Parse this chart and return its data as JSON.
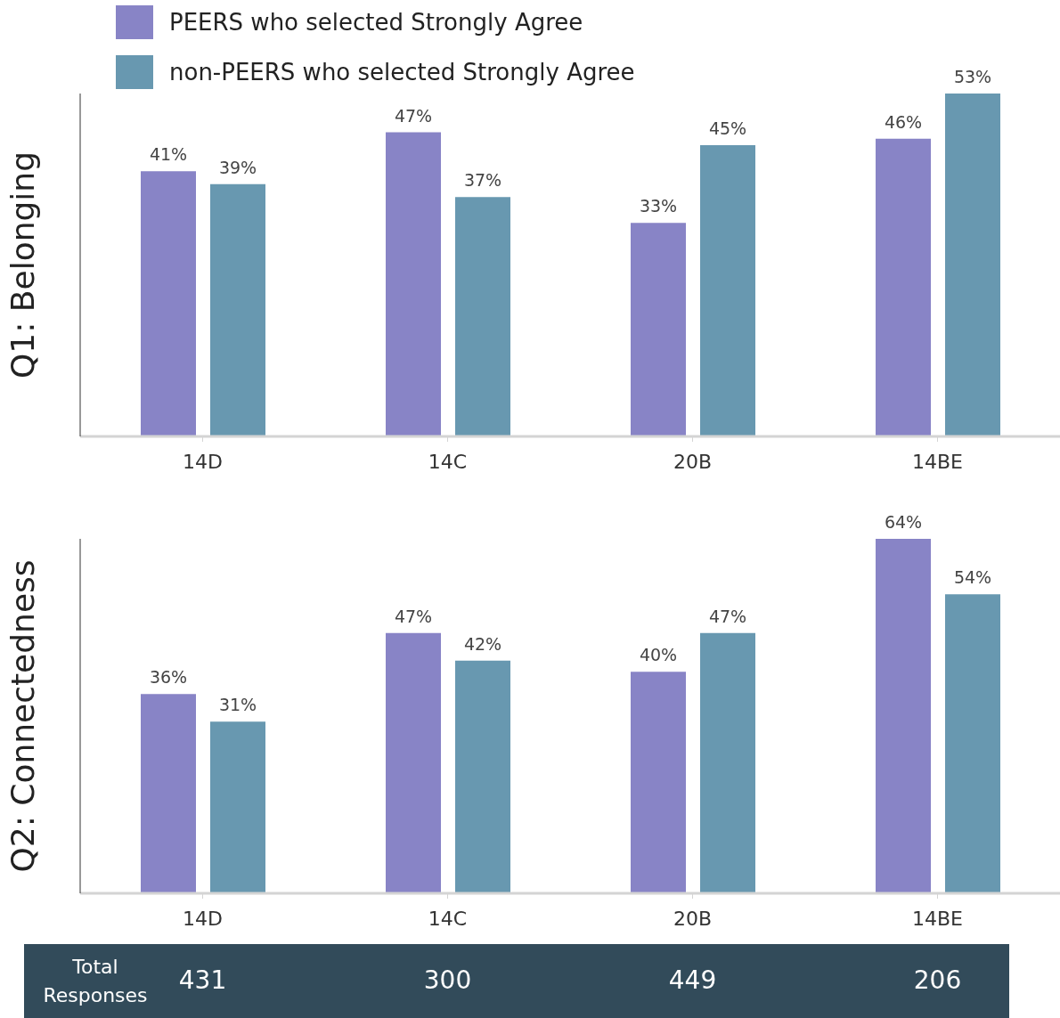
{
  "chart_data": [
    {
      "type": "bar",
      "ylabel": "Q1: Belonging",
      "categories": [
        "14D",
        "14C",
        "20B",
        "14BE"
      ],
      "legend": "top left",
      "tick_labels": "x",
      "grid": false,
      "series": [
        {
          "name": "PEERS who selected Strongly Agree",
          "color": "#8884c6",
          "values": [
            41,
            47,
            33,
            46
          ],
          "value_labels": [
            "41%",
            "47%",
            "33%",
            "46%"
          ]
        },
        {
          "name": "non-PEERS who selected Strongly Agree",
          "color": "#6898b0",
          "values": [
            39,
            37,
            45,
            53
          ],
          "value_labels": [
            "39%",
            "37%",
            "45%",
            "53%"
          ]
        }
      ]
    },
    {
      "type": "bar",
      "ylabel": "Q2: Connectedness",
      "categories": [
        "14D",
        "14C",
        "20B",
        "14BE"
      ],
      "legend": false,
      "tick_labels": "x",
      "grid": false,
      "series": [
        {
          "color": "#8884c6",
          "values": [
            36,
            47,
            40,
            64
          ],
          "value_labels": [
            "36%",
            "47%",
            "40%",
            "64%"
          ]
        },
        {
          "color": "#6898b0",
          "values": [
            31,
            42,
            47,
            54
          ],
          "value_labels": [
            "31%",
            "42%",
            "47%",
            "54%"
          ]
        }
      ],
      "annotations": [
        "Total Responses",
        "431",
        "300",
        "449",
        "206"
      ]
    }
  ]
}
